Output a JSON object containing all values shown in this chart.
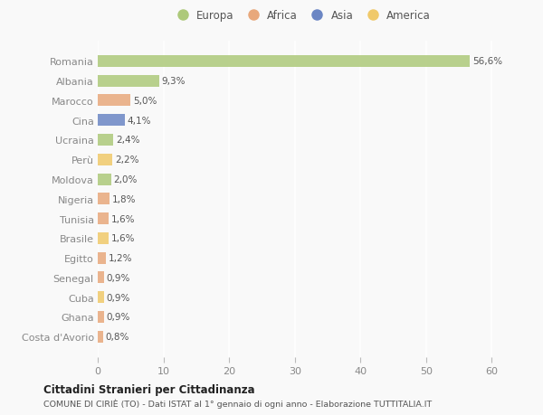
{
  "countries": [
    "Romania",
    "Albania",
    "Marocco",
    "Cina",
    "Ucraina",
    "Perù",
    "Moldova",
    "Nigeria",
    "Tunisia",
    "Brasile",
    "Egitto",
    "Senegal",
    "Cuba",
    "Ghana",
    "Costa d'Avorio"
  ],
  "values": [
    56.6,
    9.3,
    5.0,
    4.1,
    2.4,
    2.2,
    2.0,
    1.8,
    1.6,
    1.6,
    1.2,
    0.9,
    0.9,
    0.9,
    0.8
  ],
  "labels": [
    "56,6%",
    "9,3%",
    "5,0%",
    "4,1%",
    "2,4%",
    "2,2%",
    "2,0%",
    "1,8%",
    "1,6%",
    "1,6%",
    "1,2%",
    "0,9%",
    "0,9%",
    "0,9%",
    "0,8%"
  ],
  "colors": [
    "#adc97a",
    "#adc97a",
    "#e8a87c",
    "#6b86c4",
    "#adc97a",
    "#f0c96a",
    "#adc97a",
    "#e8a87c",
    "#e8a87c",
    "#f0c96a",
    "#e8a87c",
    "#e8a87c",
    "#f0c96a",
    "#e8a87c",
    "#e8a87c"
  ],
  "legend_labels": [
    "Europa",
    "Africa",
    "Asia",
    "America"
  ],
  "legend_colors": [
    "#adc97a",
    "#e8a87c",
    "#6b86c4",
    "#f0c96a"
  ],
  "title_bold": "Cittadini Stranieri per Cittadinanza",
  "title_sub": "COMUNE DI CIRIÈ (TO) - Dati ISTAT al 1° gennaio di ogni anno - Elaborazione TUTTITALIA.IT",
  "xlim": [
    0,
    62
  ],
  "xticks": [
    0,
    10,
    20,
    30,
    40,
    50,
    60
  ],
  "background_color": "#f9f9f9",
  "plot_bg_color": "#f9f9f9",
  "bar_height": 0.6,
  "grid_color": "#ffffff"
}
